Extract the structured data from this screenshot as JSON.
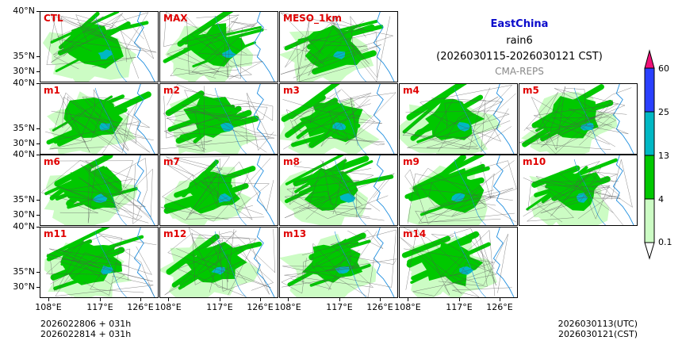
{
  "header": {
    "region": "EastChina",
    "variable": "rain6",
    "period": "(2026030115-2026030121 CST)",
    "source": "CMA-REPS"
  },
  "panels": [
    {
      "label": "CTL"
    },
    {
      "label": "MAX"
    },
    {
      "label": "MESO_1km"
    },
    {
      "label": "m1"
    },
    {
      "label": "m2"
    },
    {
      "label": "m3"
    },
    {
      "label": "m4"
    },
    {
      "label": "m5"
    },
    {
      "label": "m6"
    },
    {
      "label": "m7"
    },
    {
      "label": "m8"
    },
    {
      "label": "m9"
    },
    {
      "label": "m10"
    },
    {
      "label": "m11"
    },
    {
      "label": "m12"
    },
    {
      "label": "m13"
    },
    {
      "label": "m14"
    }
  ],
  "axes": {
    "lat_labels": [
      "40°N",
      "35°N",
      "30°N"
    ],
    "lon_labels": [
      "108°E",
      "117°E",
      "126°E"
    ]
  },
  "colorbar": {
    "levels": [
      "0.1",
      "4",
      "13",
      "25",
      "60"
    ],
    "colors": [
      "#ccfcc4",
      "#00c800",
      "#00b8c4",
      "#2a40ff",
      "#ee1177"
    ]
  },
  "footer": {
    "init_line1": "2026022806  +  031h",
    "init_line2": "2026022814  +  031h",
    "valid_utc": "2026030113(UTC)",
    "valid_cst": "2026030121(CST)"
  }
}
